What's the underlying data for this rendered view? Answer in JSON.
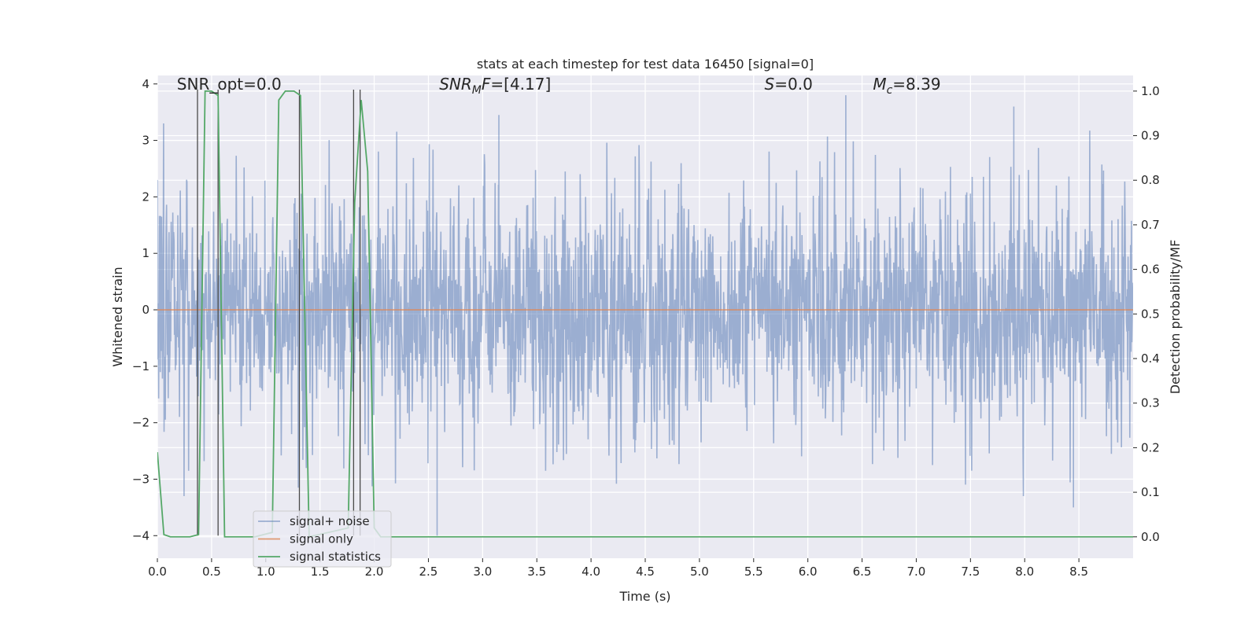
{
  "chart_data": {
    "type": "line",
    "title": "stats at each timestep for test data 16450 [signal=0]",
    "xlabel": "Time (s)",
    "ylabel": "Whitened strain",
    "y2label": "Detection probability/MF",
    "xlim": [
      0.0,
      9.0
    ],
    "ylim": [
      -4.4,
      4.15
    ],
    "y2lim": [
      -0.048,
      1.035
    ],
    "x_ticks": [
      0.0,
      0.5,
      1.0,
      1.5,
      2.0,
      2.5,
      3.0,
      3.5,
      4.0,
      4.5,
      5.0,
      5.5,
      6.0,
      6.5,
      7.0,
      7.5,
      8.0,
      8.5
    ],
    "x_tick_labels": [
      "0.0",
      "0.5",
      "1.0",
      "1.5",
      "2.0",
      "2.5",
      "3.0",
      "3.5",
      "4.0",
      "4.5",
      "5.0",
      "5.5",
      "6.0",
      "6.5",
      "7.0",
      "7.5",
      "8.0",
      "8.5"
    ],
    "y_ticks": [
      4,
      3,
      2,
      1,
      0,
      -1,
      -2,
      -3,
      -4
    ],
    "y_tick_labels": [
      "4",
      "3",
      "2",
      "1",
      "0",
      "−1",
      "−2",
      "−3",
      "−4"
    ],
    "y2_ticks": [
      1.0,
      0.9,
      0.8,
      0.7,
      0.6,
      0.5,
      0.4,
      0.3,
      0.2,
      0.1,
      0.0
    ],
    "y2_tick_labels": [
      "1.0",
      "0.9",
      "0.8",
      "0.7",
      "0.6",
      "0.5",
      "0.4",
      "0.3",
      "0.2",
      "0.1",
      "0.0"
    ],
    "grid": true,
    "annotations": [
      {
        "parts": [
          {
            "t": "SNR_opt=0.0",
            "i": false
          }
        ],
        "x": 0.18,
        "y": 3.9
      },
      {
        "parts": [
          {
            "t": "SNR",
            "i": true
          },
          {
            "t": "M",
            "i": true,
            "sub": true
          },
          {
            "t": "F",
            "i": true
          },
          {
            "t": "=[4.17]",
            "i": false
          }
        ],
        "x": 2.6,
        "y": 3.9
      },
      {
        "parts": [
          {
            "t": "S",
            "i": true
          },
          {
            "t": "=0.0",
            "i": false
          }
        ],
        "x": 5.6,
        "y": 3.9
      },
      {
        "parts": [
          {
            "t": "M",
            "i": true
          },
          {
            "t": "c",
            "i": true,
            "sub": true
          },
          {
            "t": "=8.39",
            "i": false
          }
        ],
        "x": 6.6,
        "y": 3.9
      }
    ],
    "series": [
      {
        "name": "signal+ noise",
        "color": "#4c72b0",
        "axis": "left",
        "sample_rate_hz": 1024,
        "envelope_rms": 1.0,
        "note_peaks": [
          [
            0.0,
            2.3
          ],
          [
            2.58,
            -4.0
          ],
          [
            3.15,
            3.45
          ],
          [
            6.35,
            3.8
          ],
          [
            8.45,
            -3.5
          ],
          [
            7.9,
            3.6
          ]
        ]
      },
      {
        "name": "signal only",
        "color": "#dd8452",
        "axis": "left",
        "x": [
          0.0,
          9.0
        ],
        "y": [
          0.0,
          0.0
        ]
      },
      {
        "name": "signal statistics",
        "color": "#55a868",
        "axis": "right",
        "x": [
          0.0,
          0.06,
          0.12,
          0.3,
          0.38,
          0.44,
          0.5,
          0.56,
          0.62,
          0.7,
          0.9,
          1.06,
          1.12,
          1.18,
          1.26,
          1.32,
          1.4,
          1.76,
          1.82,
          1.88,
          1.94,
          2.0,
          2.06,
          9.0
        ],
        "y": [
          0.19,
          0.005,
          0.0,
          0.0,
          0.005,
          1.0,
          1.0,
          0.99,
          0.0,
          0.0,
          0.0,
          0.01,
          0.98,
          1.0,
          1.0,
          0.99,
          0.0,
          0.02,
          0.75,
          0.98,
          0.82,
          0.02,
          0.0,
          0.0
        ]
      }
    ],
    "vlines": [
      {
        "x": 0.37,
        "y0": -4.0,
        "y1": 3.9
      },
      {
        "x": 0.56,
        "y0": -4.0,
        "y1": 3.9
      },
      {
        "x": 1.31,
        "y0": -4.0,
        "y1": 3.9
      },
      {
        "x": 1.81,
        "y0": -4.0,
        "y1": 3.9
      },
      {
        "x": 1.87,
        "y0": -4.0,
        "y1": 3.9
      }
    ],
    "legend": {
      "placement": "lower-left",
      "entries": [
        "signal+ noise",
        "signal only",
        "signal statistics"
      ]
    }
  }
}
